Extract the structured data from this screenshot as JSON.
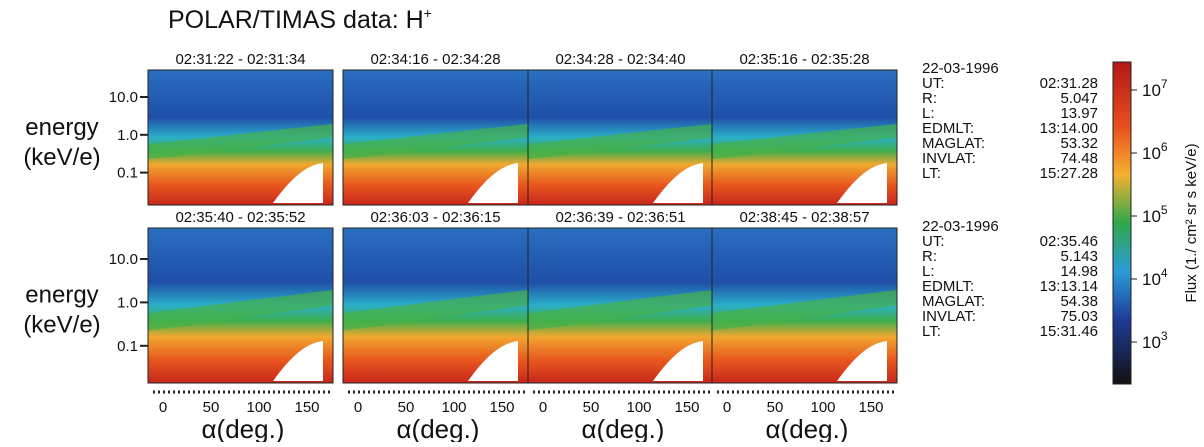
{
  "title": {
    "text": "POLAR/TIMAS data:  H",
    "sup": "+"
  },
  "panels": [
    {
      "time": "02:31:22 - 02:31:34"
    },
    {
      "time": "02:34:16 - 02:34:28"
    },
    {
      "time": "02:34:28 - 02:34:40"
    },
    {
      "time": "02:35:16 - 02:35:28"
    },
    {
      "time": "02:35:40 - 02:35:52"
    },
    {
      "time": "02:36:03 - 02:36:15"
    },
    {
      "time": "02:36:39 - 02:36:51"
    },
    {
      "time": "02:38:45 - 02:38:57"
    }
  ],
  "y_axis": {
    "label_line1": "energy",
    "label_line2": "(keV/e)",
    "ticks": [
      "10.0",
      "1.0",
      "0.1"
    ]
  },
  "x_axis": {
    "label": "α(deg.)",
    "ticks": [
      "0",
      "50",
      "100",
      "150"
    ]
  },
  "info_blocks": [
    {
      "date": "22-03-1996",
      "fields": [
        {
          "key": "UT:",
          "value": "02:31.28"
        },
        {
          "key": "R:",
          "value": "5.047"
        },
        {
          "key": "L:",
          "value": "13.97"
        },
        {
          "key": "EDMLT:",
          "value": "13:14.00"
        },
        {
          "key": "MAGLAT:",
          "value": "53.32"
        },
        {
          "key": "INVLAT:",
          "value": "74.48"
        },
        {
          "key": "LT:",
          "value": "15:27.28"
        }
      ]
    },
    {
      "date": "22-03-1996",
      "fields": [
        {
          "key": "UT:",
          "value": "02:35.46"
        },
        {
          "key": "R:",
          "value": "5.143"
        },
        {
          "key": "L:",
          "value": "14.98"
        },
        {
          "key": "EDMLT:",
          "value": "13:13.14"
        },
        {
          "key": "MAGLAT:",
          "value": "54.38"
        },
        {
          "key": "INVLAT:",
          "value": "75.03"
        },
        {
          "key": "LT:",
          "value": "15:31.46"
        }
      ]
    }
  ],
  "colorbar": {
    "label": "Flux (1./ cm² sr s keV/e)",
    "ticks": [
      {
        "base": "10",
        "exp": "7"
      },
      {
        "base": "10",
        "exp": "6"
      },
      {
        "base": "10",
        "exp": "5"
      },
      {
        "base": "10",
        "exp": "4"
      },
      {
        "base": "10",
        "exp": "3"
      }
    ]
  }
}
